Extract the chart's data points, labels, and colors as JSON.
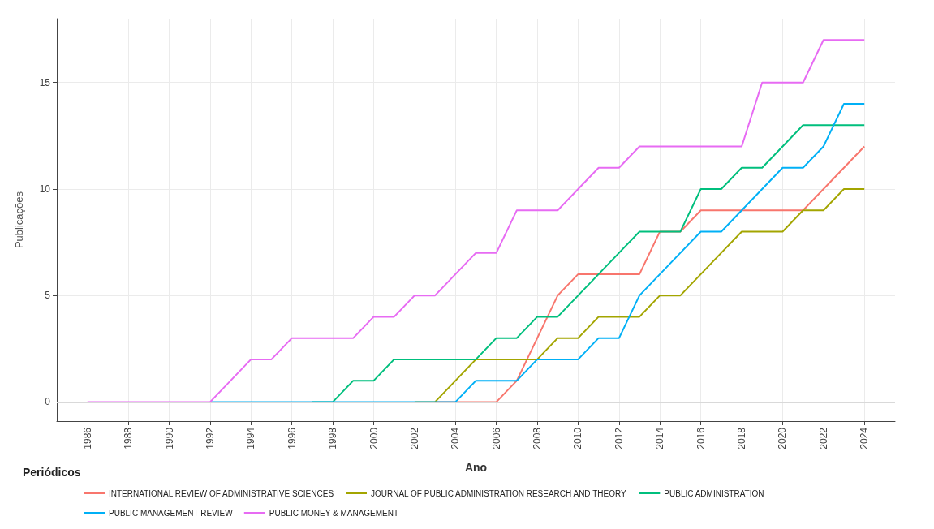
{
  "chart_data": {
    "type": "line",
    "xlabel": "Ano",
    "ylabel": "Publicações",
    "legend_title": "Periódicos",
    "x": [
      1986,
      1987,
      1988,
      1989,
      1990,
      1991,
      1992,
      1993,
      1994,
      1995,
      1996,
      1997,
      1998,
      1999,
      2000,
      2001,
      2002,
      2003,
      2004,
      2005,
      2006,
      2007,
      2008,
      2009,
      2010,
      2011,
      2012,
      2013,
      2014,
      2015,
      2016,
      2017,
      2018,
      2019,
      2020,
      2021,
      2022,
      2023,
      2024
    ],
    "series": [
      {
        "name": "INTERNATIONAL REVIEW OF ADMINISTRATIVE SCIENCES",
        "color": "#f8766d",
        "values": [
          null,
          null,
          null,
          null,
          null,
          null,
          null,
          null,
          null,
          null,
          null,
          null,
          null,
          null,
          null,
          null,
          null,
          0,
          0,
          0,
          0,
          1,
          3,
          5,
          6,
          6,
          6,
          6,
          8,
          8,
          9,
          9,
          9,
          9,
          9,
          9,
          10,
          11,
          12
        ]
      },
      {
        "name": "JOURNAL OF PUBLIC ADMINISTRATION RESEARCH AND THEORY",
        "color": "#a3a500",
        "values": [
          null,
          null,
          null,
          null,
          null,
          null,
          null,
          null,
          null,
          null,
          null,
          null,
          null,
          null,
          null,
          null,
          0,
          0,
          1,
          2,
          2,
          2,
          2,
          3,
          3,
          4,
          4,
          4,
          5,
          5,
          6,
          7,
          8,
          8,
          8,
          9,
          9,
          10,
          10
        ]
      },
      {
        "name": "PUBLIC ADMINISTRATION",
        "color": "#00bf7d",
        "values": [
          null,
          null,
          null,
          null,
          null,
          null,
          null,
          null,
          null,
          null,
          null,
          0,
          0,
          1,
          1,
          2,
          2,
          2,
          2,
          2,
          3,
          3,
          4,
          4,
          5,
          6,
          7,
          8,
          8,
          8,
          10,
          10,
          11,
          11,
          12,
          13,
          13,
          13,
          13
        ]
      },
      {
        "name": "PUBLIC MANAGEMENT REVIEW",
        "color": "#00b0f6",
        "values": [
          null,
          null,
          null,
          null,
          null,
          null,
          0,
          0,
          0,
          0,
          0,
          0,
          0,
          0,
          0,
          0,
          0,
          0,
          0,
          1,
          1,
          1,
          2,
          2,
          2,
          3,
          3,
          5,
          6,
          7,
          8,
          8,
          9,
          10,
          11,
          11,
          12,
          14,
          14
        ]
      },
      {
        "name": "PUBLIC MONEY & MANAGEMENT",
        "color": "#e76bf3",
        "values": [
          0,
          0,
          0,
          0,
          0,
          0,
          0,
          1,
          2,
          2,
          3,
          3,
          3,
          3,
          4,
          4,
          5,
          5,
          6,
          7,
          7,
          9,
          9,
          9,
          10,
          11,
          11,
          12,
          12,
          12,
          12,
          12,
          12,
          15,
          15,
          15,
          17,
          17,
          17
        ]
      }
    ],
    "xlim": [
      1984.5,
      2025.5
    ],
    "xticks": [
      1986,
      1988,
      1990,
      1992,
      1994,
      1996,
      1998,
      2000,
      2002,
      2004,
      2006,
      2008,
      2010,
      2012,
      2014,
      2016,
      2018,
      2020,
      2022,
      2024
    ],
    "ylim": [
      -0.9,
      18
    ],
    "yticks": [
      0,
      5,
      10,
      15
    ],
    "ref_lines": [
      {
        "axis": "y",
        "value": 0,
        "color": "#d9d9d9"
      }
    ],
    "grid": true,
    "legend": "bottom",
    "marker": "none",
    "line_style": "solid"
  }
}
